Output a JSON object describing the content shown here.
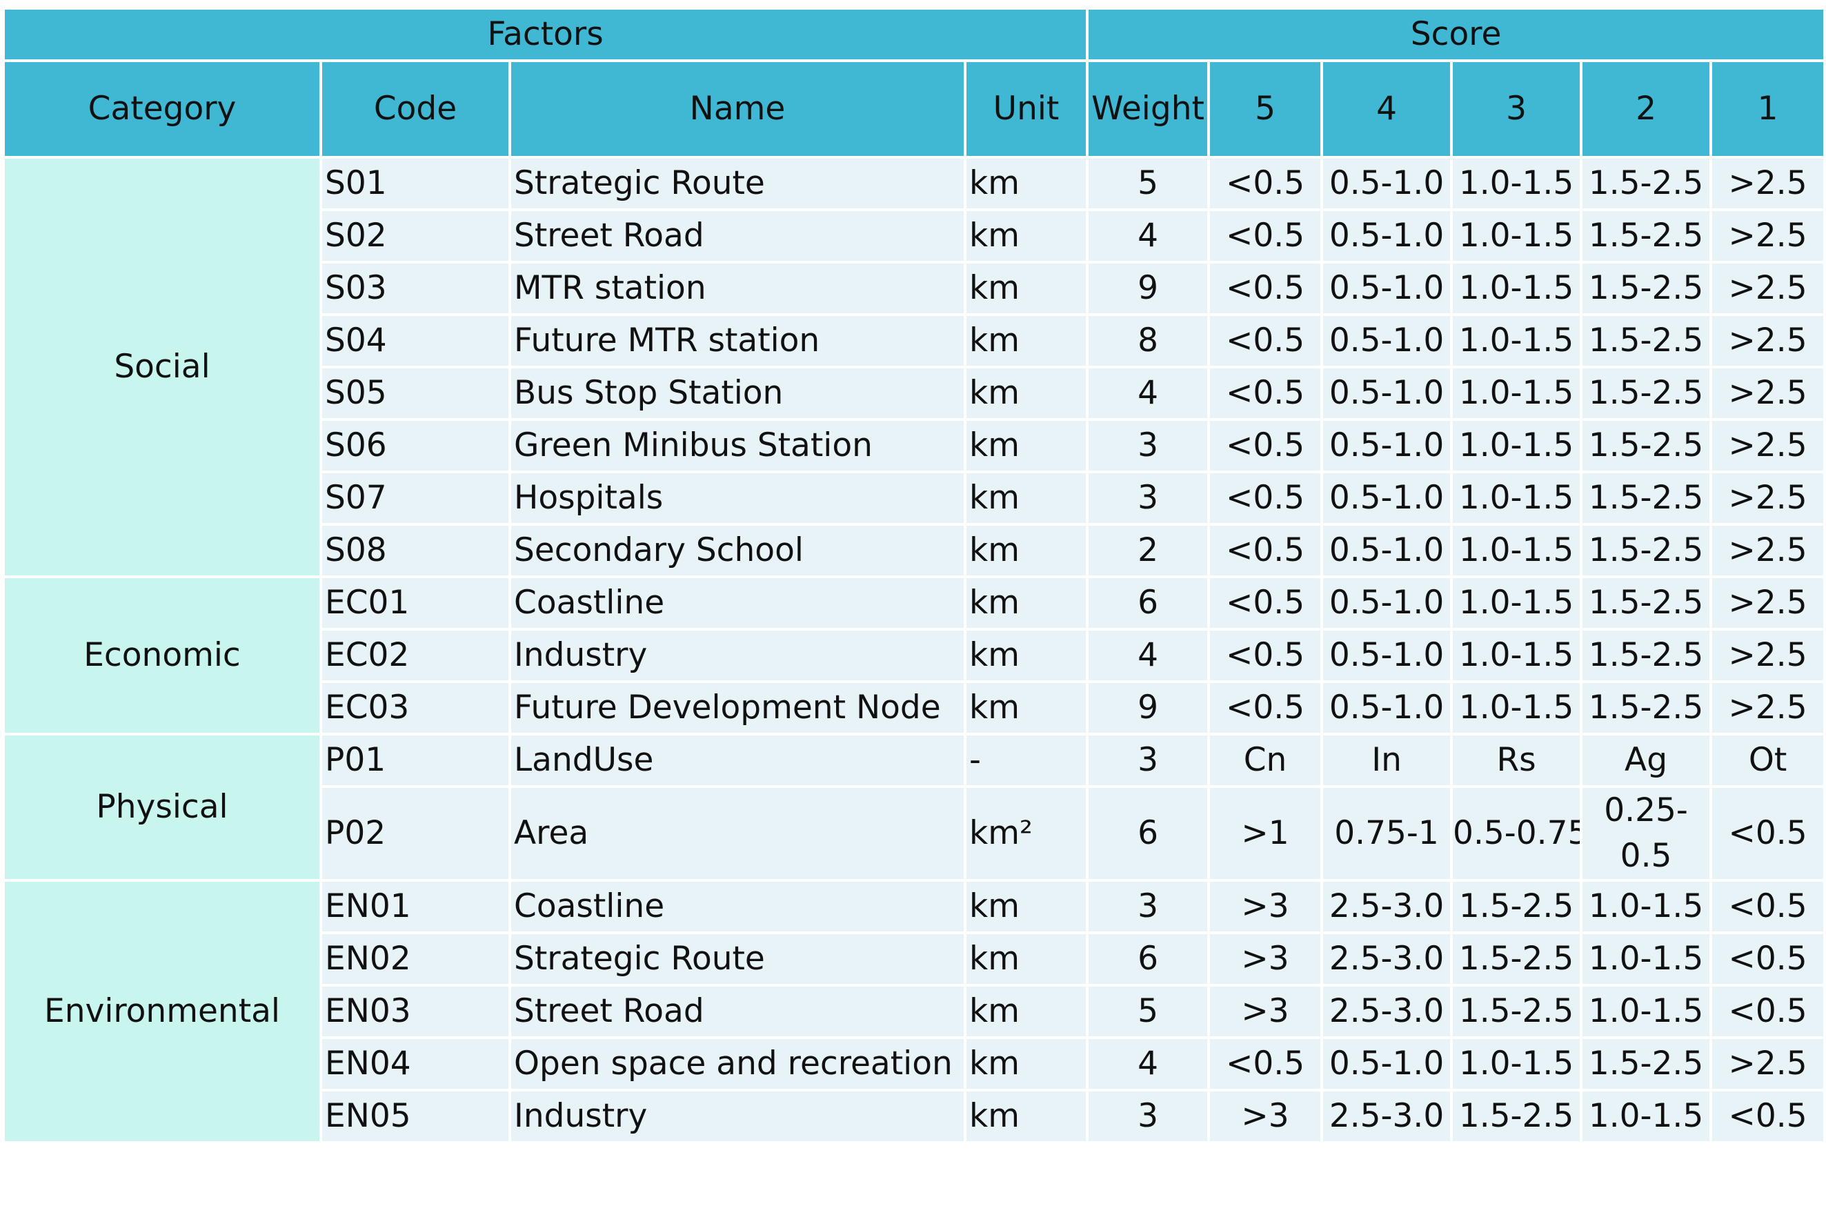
{
  "header": {
    "factors": "Factors",
    "score": "Score",
    "columns": [
      "Category",
      "Code",
      "Name",
      "Unit",
      "Weight",
      "5",
      "4",
      "3",
      "2",
      "1"
    ]
  },
  "groups": [
    {
      "category": "Social",
      "rows": [
        {
          "code": "S01",
          "name": "Strategic Route",
          "unit": "km",
          "weight": "5",
          "scores": [
            "<0.5",
            "0.5-1.0",
            "1.0-1.5",
            "1.5-2.5",
            ">2.5"
          ]
        },
        {
          "code": "S02",
          "name": "Street Road",
          "unit": "km",
          "weight": "4",
          "scores": [
            "<0.5",
            "0.5-1.0",
            "1.0-1.5",
            "1.5-2.5",
            ">2.5"
          ]
        },
        {
          "code": "S03",
          "name": "MTR station",
          "unit": "km",
          "weight": "9",
          "scores": [
            "<0.5",
            "0.5-1.0",
            "1.0-1.5",
            "1.5-2.5",
            ">2.5"
          ]
        },
        {
          "code": "S04",
          "name": "Future MTR station",
          "unit": "km",
          "weight": "8",
          "scores": [
            "<0.5",
            "0.5-1.0",
            "1.0-1.5",
            "1.5-2.5",
            ">2.5"
          ]
        },
        {
          "code": "S05",
          "name": "Bus Stop Station",
          "unit": "km",
          "weight": "4",
          "scores": [
            "<0.5",
            "0.5-1.0",
            "1.0-1.5",
            "1.5-2.5",
            ">2.5"
          ]
        },
        {
          "code": "S06",
          "name": "Green Minibus Station",
          "unit": "km",
          "weight": "3",
          "scores": [
            "<0.5",
            "0.5-1.0",
            "1.0-1.5",
            "1.5-2.5",
            ">2.5"
          ]
        },
        {
          "code": "S07",
          "name": "Hospitals",
          "unit": "km",
          "weight": "3",
          "scores": [
            "<0.5",
            "0.5-1.0",
            "1.0-1.5",
            "1.5-2.5",
            ">2.5"
          ]
        },
        {
          "code": "S08",
          "name": "Secondary School",
          "unit": "km",
          "weight": "2",
          "scores": [
            "<0.5",
            "0.5-1.0",
            "1.0-1.5",
            "1.5-2.5",
            ">2.5"
          ]
        }
      ]
    },
    {
      "category": "Economic",
      "rows": [
        {
          "code": "EC01",
          "name": "Coastline",
          "unit": "km",
          "weight": "6",
          "scores": [
            "<0.5",
            "0.5-1.0",
            "1.0-1.5",
            "1.5-2.5",
            ">2.5"
          ]
        },
        {
          "code": "EC02",
          "name": "Industry",
          "unit": "km",
          "weight": "4",
          "scores": [
            "<0.5",
            "0.5-1.0",
            "1.0-1.5",
            "1.5-2.5",
            ">2.5"
          ]
        },
        {
          "code": "EC03",
          "name": "Future Development Node",
          "unit": "km",
          "weight": "9",
          "scores": [
            "<0.5",
            "0.5-1.0",
            "1.0-1.5",
            "1.5-2.5",
            ">2.5"
          ]
        }
      ]
    },
    {
      "category": "Physical",
      "rows": [
        {
          "code": "P01",
          "name": "LandUse",
          "unit": "-",
          "weight": "3",
          "scores": [
            "Cn",
            "In",
            "Rs",
            "Ag",
            "Ot"
          ]
        },
        {
          "code": "P02",
          "name": "Area",
          "unit": "km²",
          "weight": "6",
          "scores": [
            ">1",
            "0.75-1",
            "0.5-0.75",
            "0.25-0.5",
            "<0.5"
          ]
        }
      ]
    },
    {
      "category": "Environmental",
      "rows": [
        {
          "code": "EN01",
          "name": "Coastline",
          "unit": "km",
          "weight": "3",
          "scores": [
            ">3",
            "2.5-3.0",
            "1.5-2.5",
            "1.0-1.5",
            "<0.5"
          ]
        },
        {
          "code": "EN02",
          "name": "Strategic Route",
          "unit": "km",
          "weight": "6",
          "scores": [
            ">3",
            "2.5-3.0",
            "1.5-2.5",
            "1.0-1.5",
            "<0.5"
          ]
        },
        {
          "code": "EN03",
          "name": "Street Road",
          "unit": "km",
          "weight": "5",
          "scores": [
            ">3",
            "2.5-3.0",
            "1.5-2.5",
            "1.0-1.5",
            "<0.5"
          ]
        },
        {
          "code": "EN04",
          "name": "Open space and recreation",
          "unit": "km",
          "weight": "4",
          "scores": [
            "<0.5",
            "0.5-1.0",
            "1.0-1.5",
            "1.5-2.5",
            ">2.5"
          ]
        },
        {
          "code": "EN05",
          "name": "Industry",
          "unit": "km",
          "weight": "3",
          "scores": [
            ">3",
            "2.5-3.0",
            "1.5-2.5",
            "1.0-1.5",
            "<0.5"
          ]
        }
      ]
    }
  ]
}
